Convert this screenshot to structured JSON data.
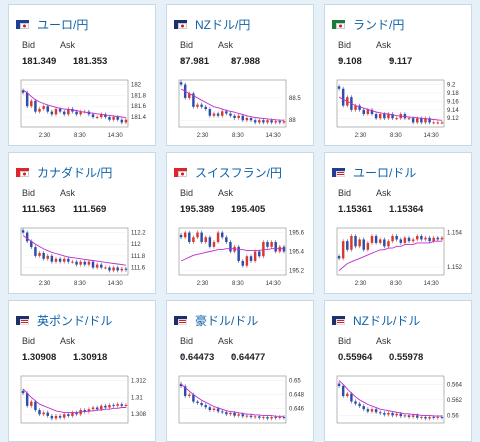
{
  "colors": {
    "up": "#d6392f",
    "down": "#2d4ea8",
    "ma": "#c02bd0",
    "arrow": "#2a7bd0",
    "link": "#0f62a8"
  },
  "labels": {
    "bid": "Bid",
    "ask": "Ask",
    "up_arrow": "↑"
  },
  "cards": [
    {
      "pair": "ユーロ/円",
      "flag": "eu-jp-flag",
      "bid": "181.349",
      "ask": "181.353",
      "arrows": true,
      "chart_data": {
        "type": "candlestick",
        "y_ticks": [
          "182",
          "181.8",
          "181.6",
          "181.4"
        ],
        "x_ticks": [
          "2:30",
          "8:30",
          "14:30"
        ],
        "close": [
          181.85,
          181.6,
          181.7,
          181.5,
          181.55,
          181.6,
          181.5,
          181.45,
          181.55,
          181.5,
          181.45,
          181.55,
          181.5,
          181.45,
          181.5,
          181.5,
          181.45,
          181.4,
          181.4,
          181.45,
          181.4,
          181.35,
          181.4,
          181.35,
          181.3,
          181.35
        ],
        "ma": [
          181.9,
          181.85,
          181.78,
          181.72,
          181.68,
          181.65,
          181.62,
          181.6,
          181.58,
          181.56,
          181.55,
          181.54,
          181.53,
          181.52,
          181.5,
          181.49,
          181.48,
          181.47,
          181.46,
          181.45,
          181.44,
          181.43,
          181.42,
          181.41,
          181.4,
          181.39
        ]
      }
    },
    {
      "pair": "NZドル/円",
      "flag": "nz-jp-flag",
      "bid": "87.981",
      "ask": "87.988",
      "arrows": true,
      "chart_data": {
        "type": "candlestick",
        "y_ticks": [
          "88.5",
          "88"
        ],
        "x_ticks": [
          "2:30",
          "8:30",
          "14:30"
        ],
        "close": [
          88.8,
          88.5,
          88.6,
          88.3,
          88.35,
          88.3,
          88.25,
          88.1,
          88.15,
          88.1,
          88.2,
          88.15,
          88.1,
          88.05,
          88.1,
          88.0,
          88.05,
          88.0,
          87.95,
          88.0,
          87.95,
          88.0,
          87.95,
          87.98,
          87.95,
          87.98
        ],
        "ma": [
          88.7,
          88.65,
          88.6,
          88.55,
          88.5,
          88.45,
          88.4,
          88.35,
          88.3,
          88.28,
          88.25,
          88.22,
          88.2,
          88.18,
          88.15,
          88.13,
          88.1,
          88.08,
          88.06,
          88.05,
          88.04,
          88.03,
          88.02,
          88.01,
          88.0,
          88.0
        ]
      }
    },
    {
      "pair": "ランド/円",
      "flag": "za-jp-flag",
      "bid": "9.108",
      "ask": "9.117",
      "arrows": true,
      "chart_data": {
        "type": "candlestick",
        "y_ticks": [
          "9.2",
          "9.18",
          "9.16",
          "9.14",
          "9.12"
        ],
        "x_ticks": [
          "2:30",
          "8:30",
          "14:30"
        ],
        "close": [
          9.19,
          9.15,
          9.17,
          9.14,
          9.15,
          9.14,
          9.13,
          9.14,
          9.13,
          9.12,
          9.13,
          9.12,
          9.13,
          9.12,
          9.12,
          9.13,
          9.12,
          9.12,
          9.11,
          9.12,
          9.11,
          9.12,
          9.11,
          9.11,
          9.11,
          9.11
        ],
        "ma": [
          9.17,
          9.165,
          9.16,
          9.155,
          9.15,
          9.147,
          9.144,
          9.141,
          9.138,
          9.135,
          9.133,
          9.131,
          9.13,
          9.128,
          9.126,
          9.125,
          9.124,
          9.123,
          9.122,
          9.121,
          9.12,
          9.119,
          9.118,
          9.117,
          9.116,
          9.115
        ]
      }
    },
    {
      "pair": "カナダドル/円",
      "flag": "ca-jp-flag",
      "bid": "111.563",
      "ask": "111.569",
      "arrows": true,
      "chart_data": {
        "type": "candlestick",
        "y_ticks": [
          "112.2",
          "112",
          "111.8",
          "111.6"
        ],
        "x_ticks": [
          "2:30",
          "8:30",
          "14:30"
        ],
        "close": [
          112.2,
          112.05,
          111.95,
          111.8,
          111.85,
          111.75,
          111.8,
          111.7,
          111.75,
          111.7,
          111.75,
          111.7,
          111.7,
          111.65,
          111.7,
          111.65,
          111.7,
          111.6,
          111.65,
          111.6,
          111.6,
          111.55,
          111.6,
          111.55,
          111.58,
          111.56
        ],
        "ma": [
          112.15,
          112.1,
          112.05,
          112.0,
          111.96,
          111.92,
          111.89,
          111.86,
          111.84,
          111.82,
          111.8,
          111.78,
          111.77,
          111.76,
          111.75,
          111.74,
          111.73,
          111.72,
          111.71,
          111.7,
          111.69,
          111.68,
          111.67,
          111.66,
          111.65,
          111.64
        ]
      }
    },
    {
      "pair": "スイスフラン/円",
      "flag": "ch-jp-flag",
      "bid": "195.389",
      "ask": "195.405",
      "arrows": true,
      "chart_data": {
        "type": "candlestick",
        "y_ticks": [
          "195.6",
          "195.4",
          "195.2"
        ],
        "x_ticks": [
          "2:30",
          "8:30",
          "14:30"
        ],
        "close": [
          195.55,
          195.6,
          195.5,
          195.55,
          195.6,
          195.5,
          195.55,
          195.45,
          195.5,
          195.6,
          195.55,
          195.5,
          195.4,
          195.45,
          195.3,
          195.25,
          195.35,
          195.3,
          195.4,
          195.35,
          195.5,
          195.45,
          195.5,
          195.4,
          195.45,
          195.4
        ],
        "ma": [
          195.3,
          195.32,
          195.34,
          195.36,
          195.37,
          195.38,
          195.39,
          195.4,
          195.41,
          195.42,
          195.42,
          195.43,
          195.43,
          195.43,
          195.42,
          195.42,
          195.41,
          195.41,
          195.41,
          195.41,
          195.42,
          195.42,
          195.43,
          195.43,
          195.43,
          195.43
        ]
      }
    },
    {
      "pair": "ユーロ/ドル",
      "flag": "eu-us-flag",
      "bid": "1.15361",
      "ask": "1.15364",
      "arrows": false,
      "chart_data": {
        "type": "candlestick",
        "y_ticks": [
          "1.154",
          "1.152"
        ],
        "x_ticks": [
          "2:30",
          "8:30",
          "14:30"
        ],
        "close": [
          1.1525,
          1.1535,
          1.153,
          1.1538,
          1.1532,
          1.1536,
          1.153,
          1.1534,
          1.1538,
          1.1534,
          1.1536,
          1.1532,
          1.1535,
          1.1538,
          1.1536,
          1.1534,
          1.1537,
          1.1535,
          1.1536,
          1.1538,
          1.1536,
          1.1537,
          1.1535,
          1.1537,
          1.1536,
          1.1537
        ],
        "ma": [
          1.1518,
          1.152,
          1.1522,
          1.1523,
          1.1524,
          1.1525,
          1.1526,
          1.1527,
          1.1528,
          1.1529,
          1.153,
          1.153,
          1.1531,
          1.1531,
          1.1532,
          1.1532,
          1.1533,
          1.1533,
          1.1533,
          1.1534,
          1.1534,
          1.1534,
          1.1534,
          1.1535,
          1.1535,
          1.1535
        ]
      }
    },
    {
      "pair": "英ポンド/ドル",
      "flag": "gb-us-flag",
      "bid": "1.30908",
      "ask": "1.30918",
      "arrows": true,
      "chart_data": {
        "type": "candlestick",
        "y_ticks": [
          "1.312",
          "1.31",
          "1.308"
        ],
        "x_ticks": [],
        "close": [
          1.3105,
          1.309,
          1.3095,
          1.3085,
          1.308,
          1.3082,
          1.3078,
          1.3075,
          1.3078,
          1.3076,
          1.308,
          1.3078,
          1.3082,
          1.308,
          1.3085,
          1.3083,
          1.3086,
          1.3088,
          1.3086,
          1.309,
          1.3088,
          1.3091,
          1.309,
          1.3092,
          1.309,
          1.3091
        ],
        "ma": [
          1.311,
          1.3105,
          1.31,
          1.3096,
          1.3092,
          1.309,
          1.3088,
          1.3086,
          1.3084,
          1.3083,
          1.3082,
          1.3082,
          1.3082,
          1.3082,
          1.3083,
          1.3083,
          1.3084,
          1.3084,
          1.3085,
          1.3085,
          1.3086,
          1.3086,
          1.3087,
          1.3087,
          1.3088,
          1.3088
        ]
      }
    },
    {
      "pair": "豪ドル/ドル",
      "flag": "au-us-flag",
      "bid": "0.64473",
      "ask": "0.64477",
      "arrows": true,
      "chart_data": {
        "type": "candlestick",
        "y_ticks": [
          "0.65",
          "0.648",
          "0.646"
        ],
        "x_ticks": [],
        "close": [
          0.6492,
          0.6478,
          0.648,
          0.647,
          0.6468,
          0.6465,
          0.6462,
          0.6458,
          0.646,
          0.6456,
          0.6455,
          0.6452,
          0.6454,
          0.645,
          0.6452,
          0.6449,
          0.645,
          0.6448,
          0.6449,
          0.6447,
          0.6448,
          0.6446,
          0.6448,
          0.6447,
          0.6448,
          0.6447
        ],
        "ma": [
          0.6495,
          0.649,
          0.6485,
          0.648,
          0.6476,
          0.6472,
          0.6469,
          0.6466,
          0.6463,
          0.6461,
          0.6459,
          0.6457,
          0.6456,
          0.6455,
          0.6454,
          0.6453,
          0.6452,
          0.6452,
          0.6451,
          0.6451,
          0.645,
          0.645,
          0.645,
          0.6449,
          0.6449,
          0.6449
        ]
      }
    },
    {
      "pair": "NZドル/ドル",
      "flag": "nz-us-flag",
      "bid": "0.55964",
      "ask": "0.55978",
      "arrows": false,
      "chart_data": {
        "type": "candlestick",
        "y_ticks": [
          "0.564",
          "0.562",
          "0.56"
        ],
        "x_ticks": [],
        "close": [
          0.5638,
          0.5625,
          0.5628,
          0.5618,
          0.5615,
          0.5612,
          0.5608,
          0.5605,
          0.5608,
          0.5604,
          0.5603,
          0.5601,
          0.5603,
          0.56,
          0.5602,
          0.5599,
          0.56,
          0.5598,
          0.56,
          0.5597,
          0.5598,
          0.5596,
          0.5598,
          0.5597,
          0.5598,
          0.5597
        ],
        "ma": [
          0.5645,
          0.564,
          0.5634,
          0.5629,
          0.5624,
          0.562,
          0.5617,
          0.5614,
          0.5612,
          0.561,
          0.5608,
          0.5607,
          0.5606,
          0.5605,
          0.5604,
          0.5603,
          0.5602,
          0.5602,
          0.5601,
          0.5601,
          0.56,
          0.56,
          0.56,
          0.5599,
          0.5599,
          0.5599
        ]
      }
    }
  ]
}
